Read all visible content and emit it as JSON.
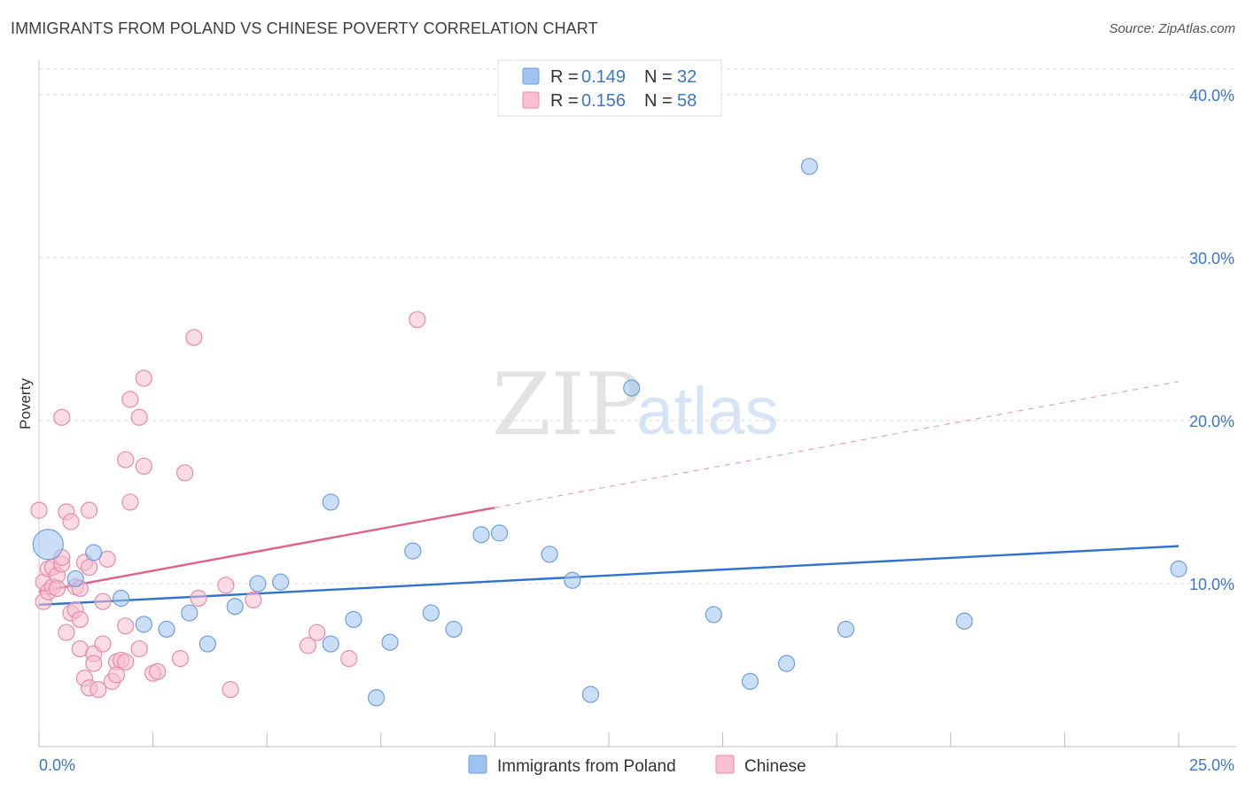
{
  "title": "IMMIGRANTS FROM POLAND VS CHINESE POVERTY CORRELATION CHART",
  "source": "Source: ZipAtlas.com",
  "watermark": {
    "zip": "ZIP",
    "atlas": "atlas"
  },
  "chart_data": {
    "type": "scatter",
    "title": "IMMIGRANTS FROM POLAND VS CHINESE POVERTY CORRELATION CHART",
    "xlabel": "",
    "ylabel": "Poverty",
    "xlim": [
      0,
      25
    ],
    "ylim": [
      0,
      42
    ],
    "x_tick_labels": [
      {
        "value": 0,
        "label": "0.0%"
      },
      {
        "value": 25,
        "label": "25.0%"
      }
    ],
    "y_tick_labels": [
      {
        "value": 10,
        "label": "10.0%"
      },
      {
        "value": 20,
        "label": "20.0%"
      },
      {
        "value": 30,
        "label": "30.0%"
      },
      {
        "value": 40,
        "label": "40.0%"
      }
    ],
    "legend": [
      {
        "r_label": "R = ",
        "r_value": "0.149",
        "n_label": "N = ",
        "n_value": "32"
      },
      {
        "r_label": "R = ",
        "r_value": "0.156",
        "n_label": "N = ",
        "n_value": "58"
      }
    ],
    "series": [
      {
        "name": "Immigrants from Poland",
        "color": "#9fc3f0",
        "stroke": "#6d9fdc",
        "trend": {
          "x0": 0,
          "y0": 8.7,
          "x1": 25,
          "y1": 12.3,
          "color": "#2f72d1",
          "solid_to": 25
        },
        "points": [
          {
            "x": 0.2,
            "y": 12.4,
            "big": true
          },
          {
            "x": 1.2,
            "y": 11.9
          },
          {
            "x": 0.8,
            "y": 10.3
          },
          {
            "x": 1.8,
            "y": 9.1
          },
          {
            "x": 2.3,
            "y": 7.5
          },
          {
            "x": 2.8,
            "y": 7.2
          },
          {
            "x": 3.3,
            "y": 8.2
          },
          {
            "x": 3.7,
            "y": 6.3
          },
          {
            "x": 4.3,
            "y": 8.6
          },
          {
            "x": 4.8,
            "y": 10.0
          },
          {
            "x": 5.3,
            "y": 10.1
          },
          {
            "x": 6.4,
            "y": 6.3
          },
          {
            "x": 6.4,
            "y": 15.0
          },
          {
            "x": 6.9,
            "y": 7.8
          },
          {
            "x": 7.4,
            "y": 3.0
          },
          {
            "x": 7.7,
            "y": 6.4
          },
          {
            "x": 8.2,
            "y": 12.0
          },
          {
            "x": 8.6,
            "y": 8.2
          },
          {
            "x": 9.1,
            "y": 7.2
          },
          {
            "x": 9.7,
            "y": 13.0
          },
          {
            "x": 10.1,
            "y": 13.1
          },
          {
            "x": 11.2,
            "y": 11.8
          },
          {
            "x": 11.7,
            "y": 10.2
          },
          {
            "x": 12.1,
            "y": 3.2
          },
          {
            "x": 13.0,
            "y": 22.0
          },
          {
            "x": 14.8,
            "y": 8.1
          },
          {
            "x": 15.6,
            "y": 4.0
          },
          {
            "x": 16.4,
            "y": 5.1
          },
          {
            "x": 16.9,
            "y": 35.6
          },
          {
            "x": 17.7,
            "y": 7.2
          },
          {
            "x": 20.3,
            "y": 7.7
          },
          {
            "x": 25.0,
            "y": 10.9
          }
        ]
      },
      {
        "name": "Chinese",
        "color": "#f7bfd0",
        "stroke": "#e98aa9",
        "trend": {
          "x0": 0,
          "y0": 9.5,
          "x1": 25,
          "y1": 22.4,
          "color": "#e45f8b",
          "solid_to": 10
        },
        "points": [
          {
            "x": 0.0,
            "y": 14.5
          },
          {
            "x": 0.1,
            "y": 10.1
          },
          {
            "x": 0.1,
            "y": 8.9
          },
          {
            "x": 0.2,
            "y": 9.5
          },
          {
            "x": 0.2,
            "y": 10.9
          },
          {
            "x": 0.3,
            "y": 9.8
          },
          {
            "x": 0.3,
            "y": 11.0
          },
          {
            "x": 0.4,
            "y": 10.5
          },
          {
            "x": 0.4,
            "y": 9.7
          },
          {
            "x": 0.5,
            "y": 11.2
          },
          {
            "x": 0.5,
            "y": 11.6
          },
          {
            "x": 0.5,
            "y": 20.2
          },
          {
            "x": 0.6,
            "y": 14.4
          },
          {
            "x": 0.6,
            "y": 7.0
          },
          {
            "x": 0.7,
            "y": 8.2
          },
          {
            "x": 0.7,
            "y": 13.8
          },
          {
            "x": 0.8,
            "y": 8.4
          },
          {
            "x": 0.8,
            "y": 9.8
          },
          {
            "x": 0.9,
            "y": 9.7
          },
          {
            "x": 0.9,
            "y": 6.0
          },
          {
            "x": 0.9,
            "y": 7.8
          },
          {
            "x": 1.0,
            "y": 4.2
          },
          {
            "x": 1.0,
            "y": 11.3
          },
          {
            "x": 1.1,
            "y": 14.5
          },
          {
            "x": 1.1,
            "y": 11.0
          },
          {
            "x": 1.1,
            "y": 3.6
          },
          {
            "x": 1.2,
            "y": 5.7
          },
          {
            "x": 1.2,
            "y": 5.1
          },
          {
            "x": 1.3,
            "y": 3.5
          },
          {
            "x": 1.4,
            "y": 6.3
          },
          {
            "x": 1.4,
            "y": 8.9
          },
          {
            "x": 1.5,
            "y": 11.5
          },
          {
            "x": 1.6,
            "y": 4.0
          },
          {
            "x": 1.7,
            "y": 5.2
          },
          {
            "x": 1.7,
            "y": 4.4
          },
          {
            "x": 1.8,
            "y": 5.3
          },
          {
            "x": 1.9,
            "y": 7.4
          },
          {
            "x": 1.9,
            "y": 5.2
          },
          {
            "x": 1.9,
            "y": 17.6
          },
          {
            "x": 2.0,
            "y": 21.3
          },
          {
            "x": 2.0,
            "y": 15.0
          },
          {
            "x": 2.2,
            "y": 6.0
          },
          {
            "x": 2.2,
            "y": 20.2
          },
          {
            "x": 2.3,
            "y": 22.6
          },
          {
            "x": 2.3,
            "y": 17.2
          },
          {
            "x": 2.5,
            "y": 4.5
          },
          {
            "x": 2.6,
            "y": 4.6
          },
          {
            "x": 3.1,
            "y": 5.4
          },
          {
            "x": 3.2,
            "y": 16.8
          },
          {
            "x": 3.4,
            "y": 25.1
          },
          {
            "x": 3.5,
            "y": 9.1
          },
          {
            "x": 4.1,
            "y": 9.9
          },
          {
            "x": 4.2,
            "y": 3.5
          },
          {
            "x": 4.7,
            "y": 9.0
          },
          {
            "x": 6.1,
            "y": 7.0
          },
          {
            "x": 6.8,
            "y": 5.4
          },
          {
            "x": 8.3,
            "y": 26.2
          },
          {
            "x": 5.9,
            "y": 6.2
          }
        ]
      }
    ]
  }
}
